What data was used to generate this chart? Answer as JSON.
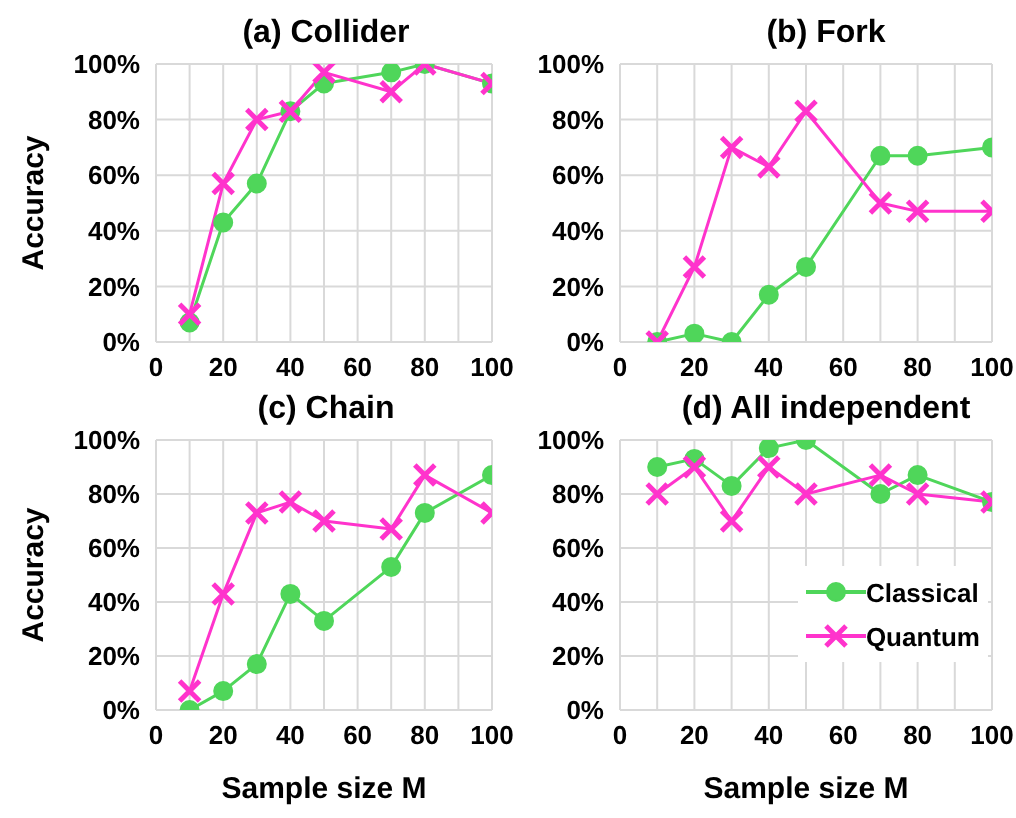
{
  "chart_data": [
    {
      "type": "line",
      "title": "(a) Collider",
      "ylabel": "Accuracy",
      "x": [
        10,
        20,
        30,
        40,
        50,
        70,
        80,
        100
      ],
      "xlim": [
        0,
        100
      ],
      "xticks": [
        0,
        {
          "value": 10,
          "label": null
        },
        20,
        {
          "value": 30,
          "label": null
        },
        40,
        {
          "value": 50,
          "label": null
        },
        60,
        {
          "value": 70,
          "label": null
        },
        80,
        {
          "value": 90,
          "label": null
        },
        100
      ],
      "ylim": [
        0,
        100
      ],
      "yticks": [
        {
          "value": 0,
          "label": "0%"
        },
        {
          "value": 20,
          "label": "20%"
        },
        {
          "value": 40,
          "label": "40%"
        },
        {
          "value": 60,
          "label": "60%"
        },
        {
          "value": 80,
          "label": "80%"
        },
        {
          "value": 100,
          "label": "100%"
        }
      ],
      "grid": true,
      "legend": false,
      "series": [
        {
          "color": "#4fd65a",
          "marker": "circle",
          "values": [
            7,
            43,
            57,
            83,
            93,
            97,
            100,
            93
          ]
        },
        {
          "color": "#ff33cc",
          "marker": "cross",
          "values": [
            10,
            57,
            80,
            83,
            97,
            90,
            100,
            93
          ]
        }
      ]
    },
    {
      "type": "line",
      "title": "(b) Fork",
      "x": [
        10,
        20,
        30,
        40,
        50,
        70,
        80,
        100
      ],
      "xlim": [
        0,
        100
      ],
      "xticks": [
        0,
        {
          "value": 10,
          "label": null
        },
        20,
        {
          "value": 30,
          "label": null
        },
        40,
        {
          "value": 50,
          "label": null
        },
        60,
        {
          "value": 70,
          "label": null
        },
        80,
        {
          "value": 90,
          "label": null
        },
        100
      ],
      "ylim": [
        0,
        100
      ],
      "yticks": [
        {
          "value": 0,
          "label": "0%"
        },
        {
          "value": 20,
          "label": "20%"
        },
        {
          "value": 40,
          "label": "40%"
        },
        {
          "value": 60,
          "label": "60%"
        },
        {
          "value": 80,
          "label": "80%"
        },
        {
          "value": 100,
          "label": "100%"
        }
      ],
      "grid": true,
      "legend": false,
      "series": [
        {
          "color": "#4fd65a",
          "marker": "circle",
          "values": [
            0,
            3,
            0,
            17,
            27,
            67,
            67,
            70
          ]
        },
        {
          "color": "#ff33cc",
          "marker": "cross",
          "values": [
            0,
            27,
            70,
            63,
            83,
            50,
            47,
            47
          ]
        }
      ]
    },
    {
      "type": "line",
      "title": "(c) Chain",
      "ylabel": "Accuracy",
      "xlabel": "Sample size M",
      "x": [
        10,
        20,
        30,
        40,
        50,
        70,
        80,
        100
      ],
      "xlim": [
        0,
        100
      ],
      "xticks": [
        0,
        {
          "value": 10,
          "label": null
        },
        20,
        {
          "value": 30,
          "label": null
        },
        40,
        {
          "value": 50,
          "label": null
        },
        60,
        {
          "value": 70,
          "label": null
        },
        80,
        {
          "value": 90,
          "label": null
        },
        100
      ],
      "ylim": [
        0,
        100
      ],
      "yticks": [
        {
          "value": 0,
          "label": "0%"
        },
        {
          "value": 20,
          "label": "20%"
        },
        {
          "value": 40,
          "label": "40%"
        },
        {
          "value": 60,
          "label": "60%"
        },
        {
          "value": 80,
          "label": "80%"
        },
        {
          "value": 100,
          "label": "100%"
        }
      ],
      "grid": true,
      "legend": false,
      "series": [
        {
          "color": "#4fd65a",
          "marker": "circle",
          "values": [
            0,
            7,
            17,
            43,
            33,
            53,
            73,
            87
          ]
        },
        {
          "color": "#ff33cc",
          "marker": "cross",
          "values": [
            7,
            43,
            73,
            77,
            70,
            67,
            87,
            73
          ]
        }
      ]
    },
    {
      "type": "line",
      "title": "(d) All independent",
      "xlabel": "Sample size M",
      "x": [
        10,
        20,
        30,
        40,
        50,
        70,
        80,
        100
      ],
      "xlim": [
        0,
        100
      ],
      "xticks": [
        0,
        {
          "value": 10,
          "label": null
        },
        20,
        {
          "value": 30,
          "label": null
        },
        40,
        {
          "value": 50,
          "label": null
        },
        60,
        {
          "value": 70,
          "label": null
        },
        80,
        {
          "value": 90,
          "label": null
        },
        100
      ],
      "ylim": [
        0,
        100
      ],
      "yticks": [
        {
          "value": 0,
          "label": "0%"
        },
        {
          "value": 20,
          "label": "20%"
        },
        {
          "value": 40,
          "label": "40%"
        },
        {
          "value": 60,
          "label": "60%"
        },
        {
          "value": 80,
          "label": "80%"
        },
        {
          "value": 100,
          "label": "100%"
        }
      ],
      "grid": true,
      "legend": "bottom right",
      "series": [
        {
          "name": "Classical",
          "color": "#4fd65a",
          "marker": "circle",
          "values": [
            90,
            93,
            83,
            97,
            100,
            80,
            87,
            77
          ]
        },
        {
          "name": "Quantum",
          "color": "#ff33cc",
          "marker": "cross",
          "values": [
            80,
            90,
            70,
            90,
            80,
            87,
            80,
            77
          ]
        }
      ]
    }
  ]
}
